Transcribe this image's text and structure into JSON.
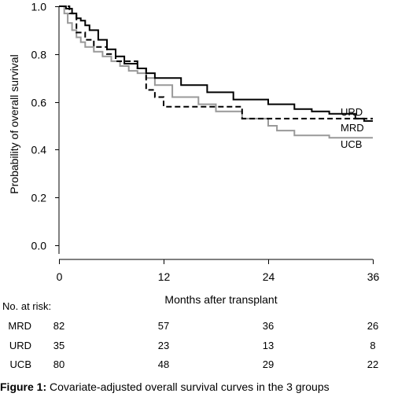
{
  "chart_data": {
    "type": "line",
    "subtype": "step",
    "xlabel": "Months after transplant",
    "ylabel": "Probability of overall survival",
    "xlim": [
      0,
      36
    ],
    "ylim": [
      0,
      1
    ],
    "xticks": [
      "0",
      "12",
      "24",
      "36"
    ],
    "yticks": [
      "0.0",
      "0.2",
      "0.4",
      "0.6",
      "0.8",
      "1.0"
    ],
    "grid": false,
    "series": [
      {
        "name": "URD",
        "color": "#000000",
        "style": "dashed",
        "x": [
          0,
          1.2,
          2.0,
          3.0,
          4.0,
          5.5,
          6.5,
          7.0,
          9.0,
          10.0,
          11.0,
          12.0,
          20.5,
          21.0,
          36
        ],
        "y": [
          1.0,
          0.97,
          0.89,
          0.86,
          0.83,
          0.8,
          0.77,
          0.77,
          0.74,
          0.65,
          0.62,
          0.58,
          0.58,
          0.53,
          0.53
        ]
      },
      {
        "name": "MRD",
        "color": "#000000",
        "style": "solid",
        "x": [
          0,
          0.8,
          1.5,
          2.0,
          2.5,
          3.0,
          3.5,
          4.5,
          5.5,
          6.5,
          7.5,
          9.0,
          10.0,
          11.0,
          14.0,
          17.0,
          20.0,
          24.0,
          27.0,
          29.0,
          31.0,
          34.0,
          35.0,
          36
        ],
        "y": [
          1.0,
          0.99,
          0.97,
          0.95,
          0.94,
          0.92,
          0.9,
          0.86,
          0.82,
          0.79,
          0.76,
          0.74,
          0.72,
          0.7,
          0.67,
          0.64,
          0.61,
          0.59,
          0.57,
          0.56,
          0.55,
          0.53,
          0.52,
          0.52
        ]
      },
      {
        "name": "UCB",
        "color": "#999999",
        "style": "solid",
        "x": [
          0,
          0.6,
          1.0,
          1.5,
          2.0,
          2.5,
          3.0,
          4.0,
          5.0,
          6.0,
          7.0,
          8.0,
          9.0,
          10.0,
          11.0,
          13.0,
          16.0,
          18.0,
          21.0,
          24.0,
          25.0,
          27.0,
          31.0,
          36
        ],
        "y": [
          1.0,
          0.97,
          0.93,
          0.9,
          0.87,
          0.85,
          0.83,
          0.81,
          0.79,
          0.77,
          0.75,
          0.73,
          0.72,
          0.7,
          0.67,
          0.62,
          0.59,
          0.56,
          0.53,
          0.5,
          0.48,
          0.46,
          0.45,
          0.45
        ]
      }
    ],
    "series_labels": [
      "URD",
      "MRD",
      "UCB"
    ],
    "risk_table": {
      "title": "No. at risk:",
      "timepoints": [
        0,
        12,
        24,
        36
      ],
      "rows": [
        {
          "group": "MRD",
          "values": [
            "82",
            "57",
            "36",
            "26"
          ]
        },
        {
          "group": "URD",
          "values": [
            "35",
            "23",
            "13",
            "8"
          ]
        },
        {
          "group": "UCB",
          "values": [
            "80",
            "48",
            "29",
            "22"
          ]
        }
      ]
    }
  },
  "caption": {
    "label": "Figure 1:",
    "text": " Covariate-adjusted overall survival curves in the 3 groups"
  }
}
